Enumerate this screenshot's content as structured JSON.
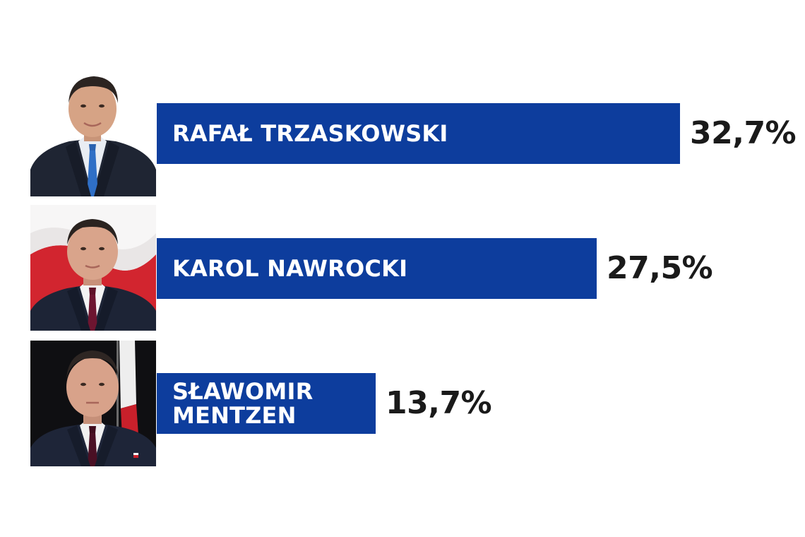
{
  "chart_data": {
    "type": "bar",
    "orientation": "horizontal",
    "xlim": [
      0,
      35
    ],
    "categories": [
      "RAFAŁ TRZASKOWSKI",
      "KAROL NAWROCKI",
      "SŁAWOMIR\nMENTZEN"
    ],
    "values": [
      32.7,
      27.5,
      13.7
    ],
    "value_labels": [
      "32,7%",
      "27,5%",
      "13,7%"
    ],
    "bar_color": "#0d3d9d",
    "label_color": "#ffffff",
    "value_color": "#1a1a1a",
    "grid": false,
    "legend": "none"
  },
  "candidates": [
    {
      "name": "RAFAŁ TRZASKOWSKI",
      "value": "32,7%",
      "photo_icon": "candidate-portrait-trzaskowski",
      "tie_color": "#2f6fc6",
      "background": "#ffffff"
    },
    {
      "name": "KAROL NAWROCKI",
      "value": "27,5%",
      "photo_icon": "candidate-portrait-nawrocki",
      "tie_color": "#6d1530",
      "background": "polish-flag"
    },
    {
      "name": "SŁAWOMIR\nMENTZEN",
      "value": "13,7%",
      "photo_icon": "candidate-portrait-mentzen",
      "tie_color": "#4a1024",
      "background": "dark-with-flag"
    }
  ]
}
